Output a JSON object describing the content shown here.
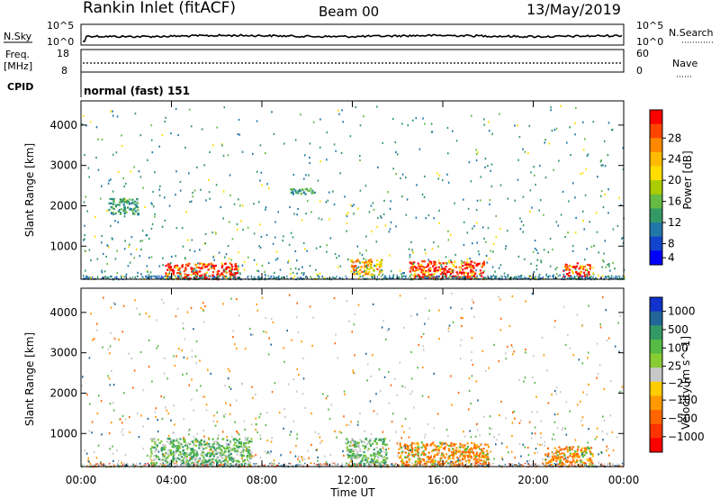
{
  "header": {
    "station": "Rankin Inlet (fitACF)",
    "beam": "Beam 00",
    "date": "13/May/2019"
  },
  "status_panels": {
    "nsky_label": "N.Sky",
    "nsearch_label": "N.Search",
    "nsky_ticks": [
      "10^5",
      "10^0"
    ],
    "nsearch_ticks": [
      "10^5",
      "10^0"
    ],
    "freq_label": "Freq.",
    "freq_unit": "[MHz]",
    "freq_ticks": [
      "18",
      "8"
    ],
    "nave_label": "Nave",
    "nave_ticks": [
      "60",
      "0"
    ],
    "cpid_label": "CPID",
    "cpid_value": "normal (fast) 151"
  },
  "chart_data": [
    {
      "type": "heatmap",
      "name": "power-panel",
      "ylabel": "Slant Range [km]",
      "colorbar_label": "Power [dB]",
      "x_range": [
        "00:00",
        "00:00"
      ],
      "ylim": [
        180,
        4600
      ],
      "yticks": [
        1000,
        2000,
        3000,
        4000
      ],
      "colorbar_ticks": [
        "28",
        "24",
        "20",
        "16",
        "12",
        "8",
        "4"
      ],
      "colorbar_colors": [
        "#ff0000",
        "#ff4400",
        "#ff8800",
        "#ffbb00",
        "#ffdd00",
        "#aacc00",
        "#66bb44",
        "#339966",
        "#2277aa",
        "#1144cc",
        "#0000ff"
      ],
      "regions": [
        {
          "t": [
            3.7,
            6.9
          ],
          "r": [
            200,
            600
          ],
          "level": "high"
        },
        {
          "t": [
            11.9,
            13.3
          ],
          "r": [
            300,
            700
          ],
          "level": "mid"
        },
        {
          "t": [
            14.5,
            17.8
          ],
          "r": [
            200,
            650
          ],
          "level": "high"
        },
        {
          "t": [
            21.3,
            22.5
          ],
          "r": [
            250,
            600
          ],
          "level": "high"
        },
        {
          "t": [
            1.2,
            2.5
          ],
          "r": [
            1800,
            2200
          ],
          "level": "low"
        },
        {
          "t": [
            9.2,
            10.3
          ],
          "r": [
            2300,
            2450
          ],
          "level": "low"
        }
      ]
    },
    {
      "type": "heatmap",
      "name": "velocity-panel",
      "ylabel": "Slant Range [km]",
      "colorbar_label": "Velocity [m s^-1]",
      "x_range": [
        "00:00",
        "00:00"
      ],
      "ylim": [
        180,
        4600
      ],
      "yticks": [
        1000,
        2000,
        3000,
        4000
      ],
      "colorbar_ticks": [
        "1000",
        "500",
        "100",
        "25",
        "−25",
        "−100",
        "−500",
        "−1000"
      ],
      "colorbar_colors": [
        "#1133cc",
        "#226699",
        "#339966",
        "#55bb44",
        "#88cc33",
        "#c8c8c8",
        "#ffcc00",
        "#ff9900",
        "#ff6600",
        "#ff3300",
        "#ff0000"
      ],
      "regions": [
        {
          "t": [
            3.0,
            7.5
          ],
          "r": [
            200,
            900
          ],
          "level": "green"
        },
        {
          "t": [
            11.7,
            13.5
          ],
          "r": [
            200,
            900
          ],
          "level": "green"
        },
        {
          "t": [
            14.0,
            18.0
          ],
          "r": [
            200,
            800
          ],
          "level": "orange"
        },
        {
          "t": [
            20.5,
            22.6
          ],
          "r": [
            200,
            700
          ],
          "level": "orange"
        }
      ]
    }
  ],
  "x_axis": {
    "ticks": [
      "00:00",
      "04:00",
      "08:00",
      "12:00",
      "16:00",
      "20:00",
      "00:00"
    ],
    "label": "Time UT"
  }
}
